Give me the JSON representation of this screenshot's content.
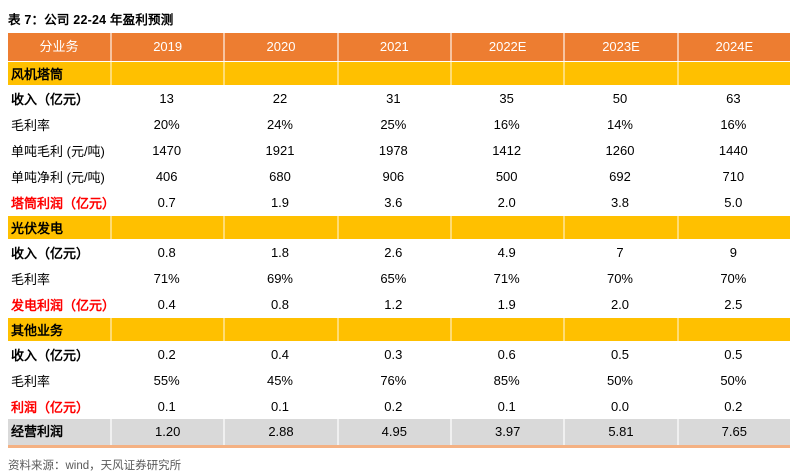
{
  "title": "表 7：公司 22-24 年盈利预测",
  "source": "资料来源：wind，天风证券研究所",
  "colors": {
    "header_bg": "#ED7D31",
    "section_bg": "#FFC000",
    "total_bg": "#D9D9D9",
    "red_label": "#FF0000",
    "bottom_rule": "#F4B183"
  },
  "table": {
    "headers": [
      "分业务",
      "2019",
      "2020",
      "2021",
      "2022E",
      "2023E",
      "2024E"
    ],
    "sections": [
      {
        "name": "风机塔筒",
        "rows": [
          {
            "label": "收入（亿元）",
            "style": "bold",
            "values": [
              "13",
              "22",
              "31",
              "35",
              "50",
              "63"
            ]
          },
          {
            "label": "毛利率",
            "style": "normal",
            "values": [
              "20%",
              "24%",
              "25%",
              "16%",
              "14%",
              "16%"
            ]
          },
          {
            "label": "单吨毛利 (元/吨)",
            "style": "normal",
            "values": [
              "1470",
              "1921",
              "1978",
              "1412",
              "1260",
              "1440"
            ]
          },
          {
            "label": "单吨净利 (元/吨)",
            "style": "normal",
            "values": [
              "406",
              "680",
              "906",
              "500",
              "692",
              "710"
            ]
          },
          {
            "label": "塔筒利润（亿元）",
            "style": "red-bold",
            "values": [
              "0.7",
              "1.9",
              "3.6",
              "2.0",
              "3.8",
              "5.0"
            ]
          }
        ]
      },
      {
        "name": "光伏发电",
        "rows": [
          {
            "label": "收入（亿元）",
            "style": "bold",
            "values": [
              "0.8",
              "1.8",
              "2.6",
              "4.9",
              "7",
              "9"
            ]
          },
          {
            "label": "毛利率",
            "style": "normal",
            "values": [
              "71%",
              "69%",
              "65%",
              "71%",
              "70%",
              "70%"
            ]
          },
          {
            "label": "发电利润（亿元）",
            "style": "red-bold",
            "values": [
              "0.4",
              "0.8",
              "1.2",
              "1.9",
              "2.0",
              "2.5"
            ]
          }
        ]
      },
      {
        "name": "其他业务",
        "rows": [
          {
            "label": "收入（亿元）",
            "style": "bold",
            "values": [
              "0.2",
              "0.4",
              "0.3",
              "0.6",
              "0.5",
              "0.5"
            ]
          },
          {
            "label": "毛利率",
            "style": "normal",
            "values": [
              "55%",
              "45%",
              "76%",
              "85%",
              "50%",
              "50%"
            ]
          },
          {
            "label": "利润（亿元）",
            "style": "red-bold",
            "values": [
              "0.1",
              "0.1",
              "0.2",
              "0.1",
              "0.0",
              "0.2"
            ]
          }
        ]
      }
    ],
    "total_row": {
      "label": "经营利润",
      "values": [
        "1.20",
        "2.88",
        "4.95",
        "3.97",
        "5.81",
        "7.65"
      ]
    }
  }
}
